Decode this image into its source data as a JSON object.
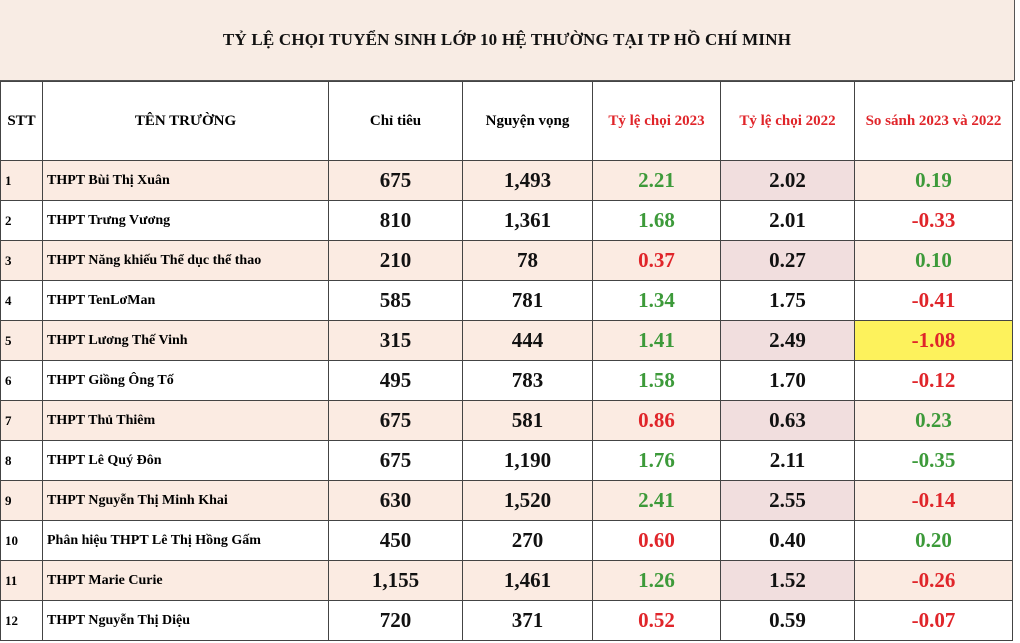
{
  "title": "TỶ LỆ CHỌI TUYỂN SINH LỚP 10 HỆ THƯỜNG TẠI TP HỒ CHÍ MINH",
  "headers": {
    "stt": "STT",
    "name": "TÊN TRƯỜNG",
    "quota": "Chỉ tiêu",
    "wishes": "Nguyện vọng",
    "ratio2023": "Tỷ lệ chọi 2023",
    "ratio2022": "Tỷ lệ chọi 2022",
    "compare": "So sánh 2023 và 2022"
  },
  "colors": {
    "green": "#3d9a3a",
    "red": "#e0252a",
    "highlight": "#fdf25c",
    "alt_row": "#fbebe2"
  },
  "rows": [
    {
      "stt": "1",
      "name": "THPT Bùi Thị Xuân",
      "quota": "675",
      "wishes": "1,493",
      "ratio2023": "2.21",
      "ratio2023_color": "green",
      "ratio2022": "2.02",
      "compare": "0.19",
      "compare_color": "green"
    },
    {
      "stt": "2",
      "name": "THPT Trưng Vương",
      "quota": "810",
      "wishes": "1,361",
      "ratio2023": "1.68",
      "ratio2023_color": "green",
      "ratio2022": "2.01",
      "compare": "-0.33",
      "compare_color": "red"
    },
    {
      "stt": "3",
      "name": "THPT Năng khiếu Thể dục thể thao",
      "quota": "210",
      "wishes": "78",
      "ratio2023": "0.37",
      "ratio2023_color": "red",
      "ratio2022": "0.27",
      "compare": "0.10",
      "compare_color": "green"
    },
    {
      "stt": "4",
      "name": "THPT TenLơMan",
      "quota": "585",
      "wishes": "781",
      "ratio2023": "1.34",
      "ratio2023_color": "green",
      "ratio2022": "1.75",
      "compare": "-0.41",
      "compare_color": "red"
    },
    {
      "stt": "5",
      "name": "THPT Lương Thế Vinh",
      "quota": "315",
      "wishes": "444",
      "ratio2023": "1.41",
      "ratio2023_color": "green",
      "ratio2022": "2.49",
      "compare": "-1.08",
      "compare_color": "red",
      "highlight": true
    },
    {
      "stt": "6",
      "name": "THPT Giồng Ông Tố",
      "quota": "495",
      "wishes": "783",
      "ratio2023": "1.58",
      "ratio2023_color": "green",
      "ratio2022": "1.70",
      "compare": "-0.12",
      "compare_color": "red"
    },
    {
      "stt": "7",
      "name": "THPT Thủ Thiêm",
      "quota": "675",
      "wishes": "581",
      "ratio2023": "0.86",
      "ratio2023_color": "red",
      "ratio2022": "0.63",
      "compare": "0.23",
      "compare_color": "green"
    },
    {
      "stt": "8",
      "name": "THPT Lê Quý Đôn",
      "quota": "675",
      "wishes": "1,190",
      "ratio2023": "1.76",
      "ratio2023_color": "green",
      "ratio2022": "2.11",
      "compare": "-0.35",
      "compare_color": "green"
    },
    {
      "stt": "9",
      "name": "THPT Nguyễn Thị Minh Khai",
      "quota": "630",
      "wishes": "1,520",
      "ratio2023": "2.41",
      "ratio2023_color": "green",
      "ratio2022": "2.55",
      "compare": "-0.14",
      "compare_color": "red"
    },
    {
      "stt": "10",
      "name": "Phân hiệu THPT Lê Thị Hồng Gấm",
      "quota": "450",
      "wishes": "270",
      "ratio2023": "0.60",
      "ratio2023_color": "red",
      "ratio2022": "0.40",
      "compare": "0.20",
      "compare_color": "green"
    },
    {
      "stt": "11",
      "name": "THPT Marie Curie",
      "quota": "1,155",
      "wishes": "1,461",
      "ratio2023": "1.26",
      "ratio2023_color": "green",
      "ratio2022": "1.52",
      "compare": "-0.26",
      "compare_color": "red"
    },
    {
      "stt": "12",
      "name": "THPT Nguyễn Thị Diệu",
      "quota": "720",
      "wishes": "371",
      "ratio2023": "0.52",
      "ratio2023_color": "red",
      "ratio2022": "0.59",
      "compare": "-0.07",
      "compare_color": "red"
    }
  ]
}
